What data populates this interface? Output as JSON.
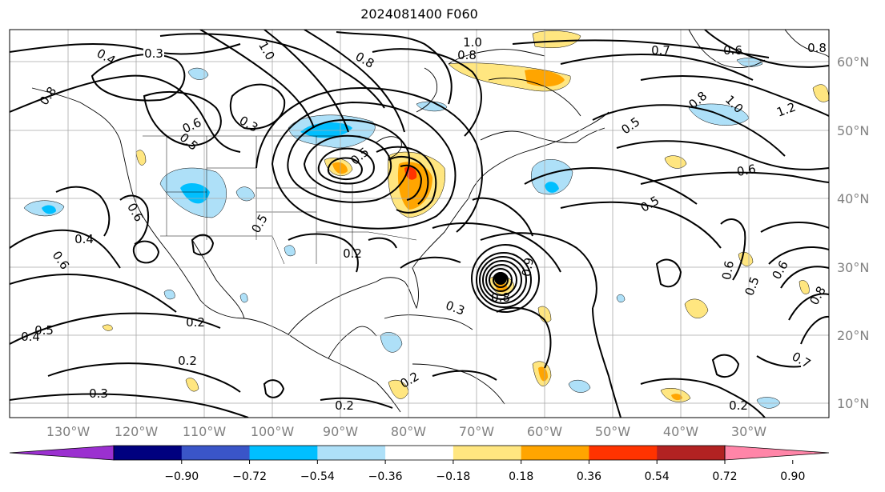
{
  "map": {
    "title": "2024081400 F060",
    "lon_labels": [
      "130°W",
      "120°W",
      "110°W",
      "100°W",
      "90°W",
      "80°W",
      "70°W",
      "60°W",
      "50°W",
      "40°W",
      "30°W"
    ],
    "lat_labels": [
      "60°N",
      "50°N",
      "40°N",
      "30°N",
      "20°N",
      "10°N"
    ],
    "extent": {
      "lon_min": -140,
      "lon_max": -20,
      "lat_min": 6,
      "lat_max": 64
    }
  },
  "contour_labels": [
    "0.3",
    "0.4",
    "0.8",
    "1.0",
    "0.8",
    "1.0",
    "0.8",
    "0.7",
    "0.6",
    "0.8",
    "1.2",
    "1.0",
    "0.8",
    "0.6",
    "0.3",
    "0.5",
    "0.5",
    "0.6",
    "0.4",
    "0.6",
    "0.5",
    "0.6",
    "0.5",
    "0.2",
    "0.3",
    "0.6",
    "0.5",
    "0.6",
    "0.8",
    "0.7",
    "0.2",
    "0.5",
    "0.4",
    "0.2",
    "0.3",
    "0.2",
    "0.2",
    "0.2",
    "0.9",
    "0.8",
    "0.5"
  ],
  "colorbar": {
    "tick_labels": [
      "−0.90",
      "−0.72",
      "−0.54",
      "−0.36",
      "−0.18",
      "0.18",
      "0.36",
      "0.54",
      "0.72",
      "0.90"
    ],
    "under_color": "#9b30d0",
    "over_color": "#ff85a8",
    "colors": [
      "#9b30d0",
      "#00007f",
      "#3a55c8",
      "#00bfff",
      "#aee0f8",
      "#ffffff",
      "#ffe680",
      "#ffa500",
      "#ff3300",
      "#b22222",
      "#ff85a8"
    ]
  }
}
